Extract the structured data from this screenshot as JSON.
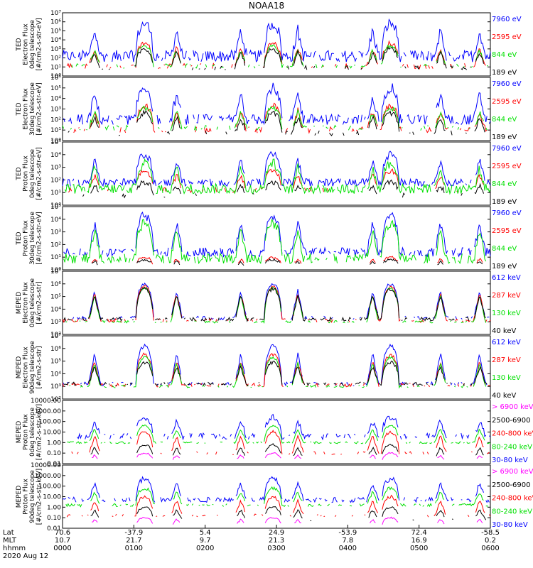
{
  "chart_data": {
    "type": "line",
    "title": "NOAA18",
    "date_label": "2020 Aug 12",
    "x_time_ticks": [
      "0000",
      "0100",
      "0200",
      "0300",
      "0400",
      "0500",
      "0600"
    ],
    "x_rows": {
      "labels": [
        "Lat",
        "MLT",
        "hhmm"
      ],
      "lat": [
        "70.6",
        "-37.9",
        "5.4",
        "24.9",
        "-53.9",
        "72.4",
        "-58.5"
      ],
      "mlt": [
        "10.7",
        "21.7",
        "9.7",
        "21.3",
        "7.8",
        "16.9",
        "0.2"
      ]
    },
    "colors": {
      "blue": "#0000ff",
      "red": "#ff0000",
      "green": "#00e000",
      "black": "#000000",
      "magenta": "#ff00ff"
    },
    "panels": [
      {
        "ylabel": [
          "TED",
          "Electron Flux",
          "0deg telescope",
          "[#/cm2-s-str-eV]"
        ],
        "y_tick_labels": [
          "10⁰",
          "10¹",
          "10²",
          "10³",
          "10⁴",
          "10⁵",
          "10⁶",
          "10⁷"
        ],
        "ylim_log": [
          0,
          7
        ],
        "legend": [
          "7960 eV",
          "2595 eV",
          "844 eV",
          "189 eV"
        ],
        "series": [
          {
            "name": "7960 eV",
            "color": "blue",
            "base": 2.2,
            "peak": 5.8,
            "noise": 1.3,
            "density": 0.9
          },
          {
            "name": "2595 eV",
            "color": "red",
            "base": 1.1,
            "peak": 3.6,
            "noise": 0.6,
            "density": 0.4
          },
          {
            "name": "844 eV",
            "color": "green",
            "base": 1.1,
            "peak": 3.3,
            "noise": 0.5,
            "density": 0.4
          },
          {
            "name": "189 eV",
            "color": "black",
            "base": 0.9,
            "peak": 3.0,
            "noise": 0.5,
            "density": 0.35
          }
        ]
      },
      {
        "ylabel": [
          "TED",
          "Electron Flux",
          "30deg telescope",
          "[#/cm2-s-str-eV]"
        ],
        "y_tick_labels": [
          "10⁰",
          "10¹",
          "10²",
          "10³",
          "10⁴",
          "10⁵",
          "10⁶"
        ],
        "ylim_log": [
          0,
          6
        ],
        "legend": [
          "7960 eV",
          "2595 eV",
          "844 eV",
          "189 eV"
        ],
        "series": [
          {
            "name": "7960 eV",
            "color": "blue",
            "base": 2.0,
            "peak": 5.0,
            "noise": 1.0,
            "density": 0.8
          },
          {
            "name": "2595 eV",
            "color": "red",
            "base": 1.0,
            "peak": 3.3,
            "noise": 0.6,
            "density": 0.45
          },
          {
            "name": "844 eV",
            "color": "green",
            "base": 1.2,
            "peak": 3.1,
            "noise": 0.5,
            "density": 0.4
          },
          {
            "name": "189 eV",
            "color": "black",
            "base": 0.7,
            "peak": 2.6,
            "noise": 0.5,
            "density": 0.35
          }
        ]
      },
      {
        "ylabel": [
          "TED",
          "Proton Flux",
          "0deg telescope",
          "[#/cm2-s-str-eV]"
        ],
        "y_tick_labels": [
          "10⁰",
          "10¹",
          "10²",
          "10³",
          "10⁴",
          "10⁵"
        ],
        "ylim_log": [
          0,
          5
        ],
        "legend": [
          "7960 eV",
          "2595 eV",
          "844 eV",
          "189 eV"
        ],
        "series": [
          {
            "name": "7960 eV",
            "color": "blue",
            "base": 1.8,
            "peak": 4.0,
            "noise": 0.6,
            "density": 0.85
          },
          {
            "name": "2595 eV",
            "color": "red",
            "base": 1.2,
            "peak": 2.7,
            "noise": 0.4,
            "density": 0.3
          },
          {
            "name": "844 eV",
            "color": "green",
            "base": 1.3,
            "peak": 3.3,
            "noise": 0.8,
            "density": 0.95
          },
          {
            "name": "189 eV",
            "color": "black",
            "base": 0.8,
            "peak": 1.8,
            "noise": 0.4,
            "density": 0.2
          }
        ]
      },
      {
        "ylabel": [
          "TED",
          "Proton Flux",
          "30deg telescope",
          "[#/cm2-s-str-eV]"
        ],
        "y_tick_labels": [
          "10⁰",
          "10¹",
          "10²",
          "10³",
          "10⁴",
          "10⁵"
        ],
        "ylim_log": [
          0,
          5
        ],
        "legend": [
          "7960 eV",
          "2595 eV",
          "844 eV",
          "189 eV"
        ],
        "series": [
          {
            "name": "7960 eV",
            "color": "blue",
            "base": 1.4,
            "peak": 4.3,
            "noise": 0.7,
            "density": 0.8
          },
          {
            "name": "2595 eV",
            "color": "red",
            "base": 0.3,
            "peak": 1.0,
            "noise": 0.2,
            "density": 0.04
          },
          {
            "name": "844 eV",
            "color": "green",
            "base": 0.9,
            "peak": 3.7,
            "noise": 0.8,
            "density": 0.8
          },
          {
            "name": "189 eV",
            "color": "black",
            "base": 0.2,
            "peak": 0.8,
            "noise": 0.2,
            "density": 0.03
          }
        ]
      },
      {
        "ylabel": [
          "MEPED",
          "Electron Flux",
          "0deg telescope",
          "[#/cm2-s-str]"
        ],
        "y_tick_labels": [
          "10²",
          "10³",
          "10⁴",
          "10⁵",
          "10⁶",
          "10⁷"
        ],
        "ylim_log": [
          2,
          7
        ],
        "legend": [
          "612 keV",
          "287 keV",
          "130 keV",
          "40 keV"
        ],
        "series": [
          {
            "name": "612 keV",
            "color": "blue",
            "base": 3.3,
            "peak": 6.0,
            "noise": 0.3,
            "density": 0.5
          },
          {
            "name": "287 keV",
            "color": "red",
            "base": 3.1,
            "peak": 5.8,
            "noise": 0.3,
            "density": 0.5
          },
          {
            "name": "130 keV",
            "color": "green",
            "base": 3.0,
            "peak": 5.7,
            "noise": 0.2,
            "density": 0.6
          },
          {
            "name": "40 keV",
            "color": "black",
            "base": 3.2,
            "peak": 5.6,
            "noise": 0.3,
            "density": 0.6
          }
        ]
      },
      {
        "ylabel": [
          "MEPED",
          "Electron Flux",
          "90deg telescope",
          "[#/cm2-s-str]"
        ],
        "y_tick_labels": [
          "10²",
          "10³",
          "10⁴",
          "10⁵",
          "10⁶",
          "10⁷"
        ],
        "ylim_log": [
          2,
          7
        ],
        "legend": [
          "612 keV",
          "287 keV",
          "130 keV",
          "40 keV"
        ],
        "series": [
          {
            "name": "612 keV",
            "color": "blue",
            "base": 3.2,
            "peak": 6.2,
            "noise": 0.3,
            "density": 0.5
          },
          {
            "name": "287 keV",
            "color": "red",
            "base": 3.1,
            "peak": 5.5,
            "noise": 0.3,
            "density": 0.5
          },
          {
            "name": "130 keV",
            "color": "green",
            "base": 3.0,
            "peak": 5.3,
            "noise": 0.2,
            "density": 0.5
          },
          {
            "name": "40 keV",
            "color": "black",
            "base": 3.2,
            "peak": 4.9,
            "noise": 0.3,
            "density": 0.6
          }
        ]
      },
      {
        "ylabel": [
          "MEPED",
          "Proton Flux",
          "0deg telescope",
          "[#/cm2-s-str-keV]"
        ],
        "y_tick_labels": [
          "0.01",
          "0.10",
          "1.00",
          "10.00",
          "100.00",
          "1000.00",
          "10000.00"
        ],
        "ylim_log": [
          -2,
          4
        ],
        "legend": [
          "> 6900 keV",
          "2500-6900",
          "240-800 keV",
          "80-240 keV",
          "30-80 keV"
        ],
        "series": [
          {
            "name": "> 6900 keV",
            "color": "magenta",
            "base": -1.8,
            "peak": -1.0,
            "noise": 0.15,
            "density": 0.02
          },
          {
            "name": "2500-6900",
            "color": "black",
            "base": -1.5,
            "peak": -0.2,
            "noise": 0.2,
            "density": 0.05
          },
          {
            "name": "240-800 keV",
            "color": "red",
            "base": -1.0,
            "peak": 1.0,
            "noise": 0.3,
            "density": 0.3
          },
          {
            "name": "80-240 keV",
            "color": "green",
            "base": 0.0,
            "peak": 1.6,
            "noise": 0.2,
            "density": 0.6
          },
          {
            "name": "30-80 keV",
            "color": "blue",
            "base": 0.6,
            "peak": 2.4,
            "noise": 0.6,
            "density": 0.6
          }
        ]
      },
      {
        "ylabel": [
          "MEPED",
          "Proton Flux",
          "90deg telescope",
          "[#/cm2-s-str-keV]"
        ],
        "y_tick_labels": [
          "0.01",
          "0.10",
          "1.00",
          "10.00",
          "100.00",
          "1000.00",
          "10000.00"
        ],
        "ylim_log": [
          -2,
          4
        ],
        "legend": [
          "> 6900 keV",
          "2500-6900",
          "240-800 keV",
          "80-240 keV",
          "30-80 keV"
        ],
        "series": [
          {
            "name": "> 6900 keV",
            "color": "magenta",
            "base": -1.8,
            "peak": -1.0,
            "noise": 0.15,
            "density": 0.02
          },
          {
            "name": "2500-6900",
            "color": "black",
            "base": -1.2,
            "peak": 0.0,
            "noise": 0.2,
            "density": 0.1
          },
          {
            "name": "240-800 keV",
            "color": "red",
            "base": -0.8,
            "peak": 1.0,
            "noise": 0.3,
            "density": 0.4
          },
          {
            "name": "80-240 keV",
            "color": "green",
            "base": 0.2,
            "peak": 1.8,
            "noise": 0.3,
            "density": 0.6
          },
          {
            "name": "30-80 keV",
            "color": "blue",
            "base": 0.7,
            "peak": 2.7,
            "noise": 0.5,
            "density": 0.7
          }
        ]
      }
    ],
    "passes_hours": [
      [
        0.0,
        0.15
      ],
      [
        0.55,
        0.7
      ],
      [
        1.6,
        1.7
      ],
      [
        2.45,
        2.6
      ],
      [
        3.2,
        3.4
      ],
      [
        4.35,
        4.5
      ],
      [
        5.7,
        6.0
      ]
    ]
  }
}
